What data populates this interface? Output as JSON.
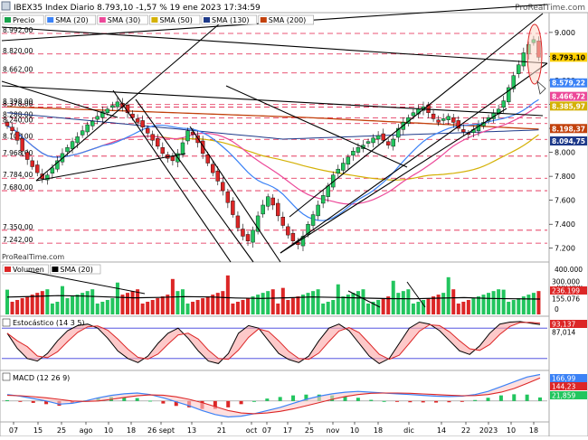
{
  "header": {
    "title": "IBEX35 Index Diario 8.793,10 -1,57 % 19 ene 2023 17:34:59",
    "brand": "ProRealTime.com",
    "watermark": "ProRealTime.com"
  },
  "colors": {
    "up": "#22c55e",
    "down": "#dc2626",
    "sma20": "#3b82f6",
    "sma30": "#ec4899",
    "sma50": "#d4b106",
    "sma130": "#1e3a8a",
    "sma200": "#c2410c",
    "grid_red": "#e11d48",
    "trend": "#000000"
  },
  "chart_data": [
    {
      "type": "line",
      "title": "Precio",
      "legend": [
        "Precio",
        "SMA (20)",
        "SMA (30)",
        "SMA (50)",
        "SMA (130)",
        "SMA (200)"
      ],
      "x_ticks": [
        "07",
        "15",
        "25",
        "ago",
        "10",
        "18",
        "26 sept",
        "13",
        "21",
        "oct",
        "07",
        "17",
        "25",
        "nov",
        "10",
        "18",
        "dic",
        "14",
        "22",
        "2023",
        "10",
        "18"
      ],
      "y_ticks": [
        "9.000",
        "8.800",
        "8.600",
        "8.400",
        "8.200",
        "8.000",
        "7.800",
        "7.600",
        "7.400",
        "7.200"
      ],
      "ylim": [
        7100,
        9150
      ],
      "levels": [
        "8.992,00",
        "8.820,00",
        "8.662,00",
        "8.398,00",
        "8.378,00",
        "8.288,00",
        "8.240,00",
        "8.108,00",
        "7.968,00",
        "7.784,00",
        "7.680,00",
        "7.350,00",
        "7.242,00"
      ],
      "right_labels": [
        {
          "text": "8.793,10",
          "value": 8793.1,
          "color": "#ffd000",
          "fg": "#000000"
        },
        {
          "text": "8.579,22",
          "value": 8579.22,
          "color": "#3b82f6",
          "fg": "#ffffff"
        },
        {
          "text": "8.466,72",
          "value": 8466.72,
          "color": "#ec4899",
          "fg": "#ffffff"
        },
        {
          "text": "8.385,97",
          "value": 8385.97,
          "color": "#d4b106",
          "fg": "#ffffff"
        },
        {
          "text": "8.198,37",
          "value": 8198.37,
          "color": "#c2410c",
          "fg": "#ffffff"
        },
        {
          "text": "8.094,75",
          "value": 8094.75,
          "color": "#1e3a8a",
          "fg": "#ffffff"
        }
      ],
      "close": [
        8220,
        8180,
        8100,
        8010,
        7940,
        7880,
        7830,
        7780,
        7810,
        7870,
        7930,
        7990,
        8040,
        8090,
        8130,
        8180,
        8230,
        8260,
        8300,
        8340,
        8360,
        8390,
        8420,
        8380,
        8330,
        8290,
        8250,
        8210,
        8160,
        8100,
        8050,
        7990,
        7950,
        7930,
        7990,
        8080,
        8180,
        8150,
        8080,
        7990,
        7910,
        7830,
        7760,
        7680,
        7580,
        7480,
        7370,
        7300,
        7260,
        7350,
        7470,
        7560,
        7630,
        7560,
        7470,
        7390,
        7310,
        7260,
        7230,
        7300,
        7400,
        7480,
        7560,
        7640,
        7720,
        7810,
        7860,
        7910,
        7960,
        8010,
        8040,
        8060,
        8090,
        8120,
        8140,
        8100,
        8060,
        8110,
        8200,
        8250,
        8290,
        8330,
        8360,
        8380,
        8330,
        8280,
        8250,
        8280,
        8300,
        8250,
        8200,
        8170,
        8150,
        8190,
        8230,
        8250,
        8290,
        8330,
        8360,
        8430,
        8540,
        8640,
        8730,
        8830,
        8900,
        8940,
        8793
      ]
    },
    {
      "type": "bar",
      "title": "Volumen",
      "legend": [
        "Volumen",
        "SMA (20)"
      ],
      "y_ticks": [
        "400.000",
        "200.000",
        "0"
      ],
      "right_labels": [
        {
          "text": "300.000",
          "color": "#ffffff",
          "fg": "#000000"
        },
        {
          "text": "236.199",
          "color": "#dc2626",
          "fg": "#ffffff"
        },
        {
          "text": "155.076",
          "color": "#ffffff",
          "fg": "#000000"
        }
      ],
      "ylim": [
        0,
        420000
      ],
      "sma": [
        175000,
        182000,
        190000,
        185000,
        176000,
        168000,
        172000,
        180000,
        176000,
        166000,
        162000,
        168000,
        176000,
        172000,
        165000,
        160000,
        158000,
        164000,
        170000,
        162000,
        158000,
        155076
      ]
    },
    {
      "type": "line",
      "title": "Estocástico (14 3 5)",
      "right_labels": [
        {
          "text": "93,137",
          "color": "#dc2626",
          "fg": "#ffffff"
        },
        {
          "text": "87,014",
          "color": "#ffffff",
          "fg": "#000000"
        }
      ],
      "ylim": [
        0,
        100
      ],
      "k": [
        70,
        40,
        20,
        15,
        30,
        55,
        75,
        85,
        88,
        80,
        60,
        35,
        20,
        12,
        25,
        50,
        70,
        80,
        60,
        35,
        15,
        10,
        30,
        70,
        85,
        80,
        55,
        30,
        18,
        12,
        25,
        55,
        80,
        88,
        75,
        50,
        25,
        10,
        20,
        50,
        80,
        92,
        88,
        75,
        55,
        35,
        28,
        45,
        70,
        88,
        92,
        93,
        90,
        87
      ]
    },
    {
      "type": "bar",
      "title": "MACD (12 26 9)",
      "right_labels": [
        {
          "text": "166,99",
          "color": "#3b82f6",
          "fg": "#ffffff"
        },
        {
          "text": "144,23",
          "color": "#dc2626",
          "fg": "#ffffff"
        },
        {
          "text": "21,859",
          "color": "#22c55e",
          "fg": "#ffffff"
        }
      ],
      "ylim": [
        -120,
        180
      ],
      "macd": [
        40,
        30,
        15,
        0,
        -20,
        -15,
        0,
        20,
        35,
        45,
        50,
        40,
        20,
        -5,
        -30,
        -60,
        -85,
        -100,
        -95,
        -80,
        -60,
        -40,
        -15,
        10,
        30,
        45,
        55,
        60,
        55,
        50,
        45,
        40,
        35,
        30,
        28,
        30,
        40,
        60,
        90,
        120,
        150,
        166
      ],
      "signal": [
        35,
        33,
        27,
        20,
        10,
        0,
        -3,
        0,
        10,
        22,
        32,
        38,
        36,
        26,
        10,
        -10,
        -35,
        -60,
        -75,
        -80,
        -75,
        -65,
        -50,
        -30,
        -10,
        10,
        28,
        40,
        48,
        50,
        50,
        48,
        44,
        40,
        36,
        33,
        34,
        40,
        55,
        78,
        110,
        144
      ]
    }
  ]
}
